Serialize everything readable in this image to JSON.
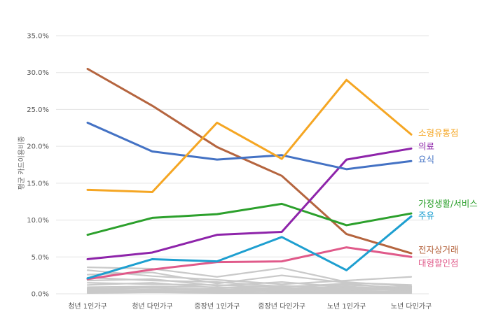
{
  "chart_data": {
    "type": "line",
    "title": "",
    "xlabel": "",
    "ylabel": "평균 카드이용비중",
    "ylim": [
      0,
      35
    ],
    "y_ticks": [
      "0.0%",
      "5.0%",
      "10.0%",
      "15.0%",
      "20.0%",
      "25.0%",
      "30.0%",
      "35.0%"
    ],
    "grid": "horizontal",
    "legend": "direct labels at right end of lines",
    "categories": [
      "청년 1인가구",
      "청년 다인가구",
      "중장년 1인가구",
      "중장년 다인가구",
      "노년 1인가구",
      "노년 다인가구"
    ],
    "series": [
      {
        "name": "소형유통점",
        "color": "#F5A623",
        "values": [
          14.1,
          13.8,
          23.2,
          18.3,
          29.0,
          21.6
        ]
      },
      {
        "name": "의료",
        "color": "#8E24AA",
        "values": [
          4.7,
          5.6,
          8.0,
          8.4,
          18.2,
          19.7
        ]
      },
      {
        "name": "요식",
        "color": "#4472C4",
        "values": [
          23.2,
          19.3,
          18.2,
          18.8,
          16.9,
          18.0
        ]
      },
      {
        "name": "가정생활/서비스",
        "color": "#2CA02C",
        "values": [
          8.0,
          10.3,
          10.8,
          12.2,
          9.3,
          10.9
        ]
      },
      {
        "name": "주유",
        "color": "#1E9FD0",
        "values": [
          2.1,
          4.7,
          4.4,
          7.7,
          3.2,
          10.5
        ]
      },
      {
        "name": "전자상거래",
        "color": "#B5653F",
        "values": [
          30.5,
          25.5,
          19.9,
          16.0,
          8.1,
          5.5
        ]
      },
      {
        "name": "대형할인점",
        "color": "#E05A8A",
        "values": [
          2.0,
          3.3,
          4.3,
          4.4,
          6.3,
          5.0
        ]
      }
    ],
    "background_series": [
      {
        "values": [
          3.6,
          3.4,
          2.3,
          3.5,
          1.6,
          1.0
        ]
      },
      {
        "values": [
          3.2,
          2.4,
          1.9,
          1.3,
          1.8,
          2.3
        ]
      },
      {
        "values": [
          2.6,
          2.9,
          1.4,
          2.5,
          1.5,
          1.2
        ]
      },
      {
        "values": [
          2.2,
          1.8,
          1.6,
          1.0,
          1.2,
          0.8
        ]
      },
      {
        "values": [
          1.8,
          2.0,
          1.1,
          1.6,
          0.9,
          0.7
        ]
      },
      {
        "values": [
          1.5,
          1.3,
          1.2,
          0.9,
          1.4,
          0.6
        ]
      },
      {
        "values": [
          1.2,
          1.5,
          0.8,
          1.1,
          0.7,
          1.0
        ]
      },
      {
        "values": [
          0.9,
          1.0,
          0.9,
          0.7,
          1.0,
          0.5
        ]
      },
      {
        "values": [
          0.7,
          0.8,
          0.6,
          0.8,
          0.6,
          0.9
        ]
      },
      {
        "values": [
          0.5,
          0.9,
          0.4,
          0.5,
          0.8,
          0.4
        ]
      },
      {
        "values": [
          0.4,
          0.6,
          0.5,
          0.6,
          0.4,
          0.3
        ]
      },
      {
        "values": [
          0.3,
          0.4,
          0.3,
          0.3,
          0.5,
          0.6
        ]
      },
      {
        "values": [
          0.2,
          0.3,
          0.2,
          0.4,
          0.3,
          0.2
        ]
      },
      {
        "values": [
          0.6,
          0.5,
          0.7,
          0.2,
          0.2,
          0.3
        ]
      },
      {
        "values": [
          0.1,
          0.2,
          0.1,
          0.1,
          0.1,
          0.1
        ]
      }
    ],
    "background_color": "#C9C9C9",
    "grid_color": "#E3E3E3"
  }
}
